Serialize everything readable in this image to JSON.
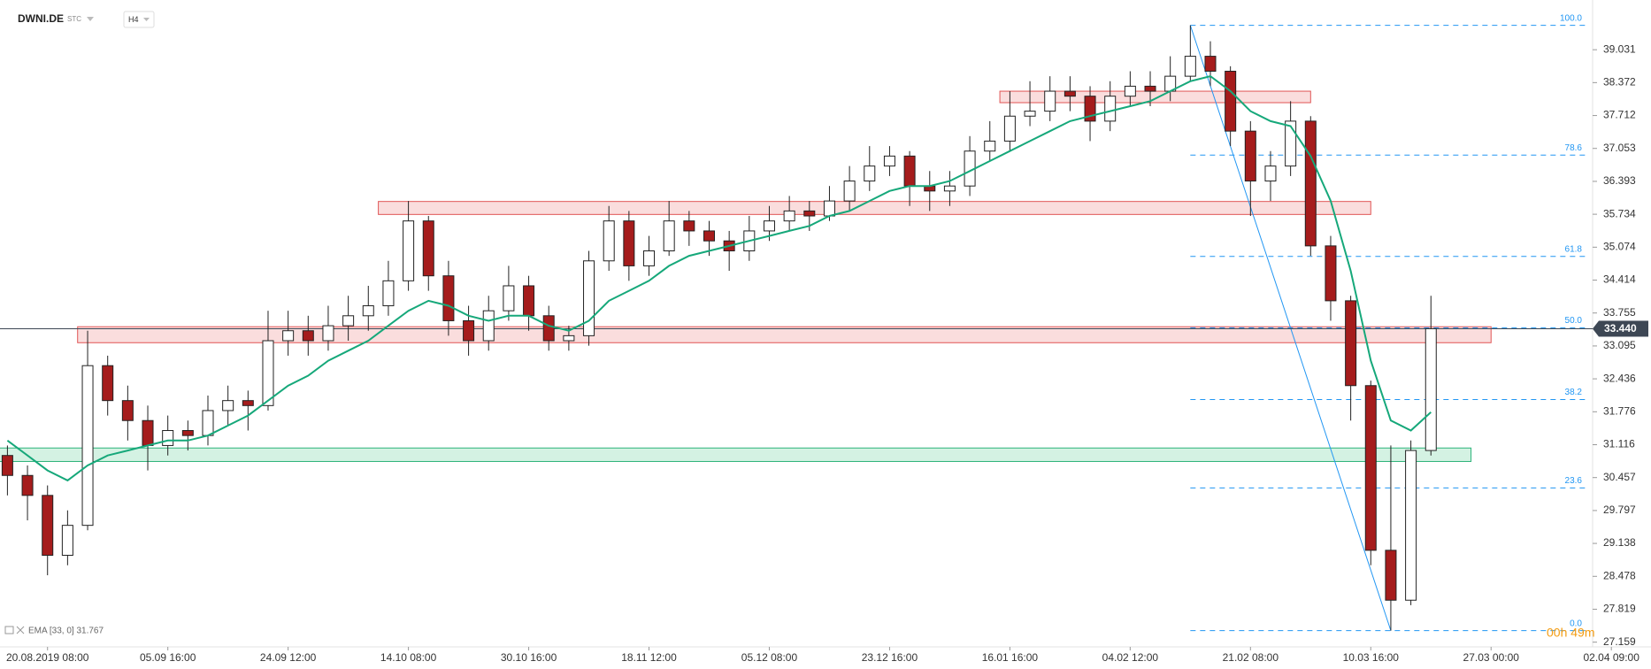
{
  "chart_data": {
    "type": "candlestick",
    "title": "DWNI.DE",
    "subtitle": "STC",
    "timeframe": "H4",
    "indicator": "EMA [33, 0] 31.767",
    "timer": "00h 49m",
    "categories": [
      null,
      null,
      "20.08.2019 08:00",
      null,
      null,
      null,
      null,
      null,
      "05.09 16:00",
      null,
      null,
      null,
      null,
      null,
      "24.09 12:00",
      null,
      null,
      null,
      null,
      null,
      "14.10 08:00",
      null,
      null,
      null,
      null,
      null,
      "30.10 16:00",
      null,
      null,
      null,
      null,
      null,
      "18.11 12:00",
      null,
      null,
      null,
      null,
      null,
      "05.12 08:00",
      null,
      null,
      null,
      null,
      null,
      "23.12 16:00",
      null,
      null,
      null,
      null,
      null,
      "16.01 16:00",
      null,
      null,
      null,
      null,
      null,
      "04.02 12:00",
      null,
      null,
      null,
      null,
      null,
      "21.02 08:00",
      null,
      null,
      null,
      null,
      null,
      "10.03 16:00",
      null,
      null,
      null,
      null,
      null,
      "27.03 00:00",
      null,
      null,
      null,
      null,
      null,
      "02.04 09:00"
    ],
    "opens": [
      30.9,
      30.5,
      30.1,
      28.9,
      29.5,
      32.7,
      32.0,
      31.6,
      31.1,
      31.4,
      31.3,
      31.8,
      32.0,
      31.9,
      33.2,
      33.4,
      33.2,
      33.5,
      33.7,
      33.9,
      34.4,
      35.6,
      34.5,
      33.6,
      33.2,
      33.8,
      34.3,
      33.7,
      33.2,
      33.3,
      34.8,
      35.6,
      34.7,
      35.0,
      35.6,
      35.4,
      35.2,
      35.0,
      35.4,
      35.6,
      35.8,
      35.7,
      36.0,
      36.4,
      36.7,
      36.9,
      36.3,
      36.2,
      36.3,
      37.0,
      37.2,
      37.7,
      37.8,
      38.2,
      38.1,
      37.6,
      38.1,
      38.3,
      38.2,
      38.5,
      38.9,
      38.6,
      37.4,
      36.4,
      36.7,
      37.6,
      35.1,
      34.0,
      32.3,
      29.0,
      28.0,
      31.0,
      null,
      null,
      null,
      null,
      null,
      null,
      null,
      null,
      null
    ],
    "highs": [
      31.1,
      30.7,
      30.3,
      29.8,
      33.4,
      32.9,
      32.3,
      31.9,
      31.7,
      31.6,
      32.1,
      32.3,
      32.2,
      33.8,
      33.8,
      33.7,
      33.9,
      34.1,
      34.3,
      34.8,
      36.0,
      35.7,
      34.8,
      33.9,
      34.1,
      34.7,
      34.5,
      33.9,
      33.5,
      35.0,
      35.9,
      35.8,
      35.3,
      36.0,
      35.8,
      35.6,
      35.4,
      35.7,
      35.9,
      36.1,
      36.0,
      36.3,
      36.7,
      37.1,
      37.1,
      37.0,
      36.6,
      36.6,
      37.3,
      37.6,
      38.2,
      38.4,
      38.5,
      38.5,
      38.3,
      38.4,
      38.6,
      38.6,
      38.9,
      39.52,
      39.2,
      38.7,
      37.6,
      37.0,
      38.0,
      37.7,
      35.3,
      34.1,
      32.4,
      31.1,
      31.2,
      34.1,
      null,
      null,
      null,
      null,
      null,
      null,
      null,
      null,
      null
    ],
    "lows": [
      30.1,
      29.6,
      28.5,
      28.7,
      29.4,
      31.7,
      31.2,
      30.6,
      30.9,
      31.0,
      31.1,
      31.5,
      31.4,
      31.8,
      32.9,
      32.9,
      33.0,
      33.2,
      33.4,
      33.7,
      34.2,
      34.2,
      33.3,
      32.9,
      33.0,
      33.6,
      33.4,
      33.0,
      33.0,
      33.1,
      34.6,
      34.4,
      34.5,
      34.9,
      35.1,
      34.9,
      34.6,
      34.8,
      35.2,
      35.4,
      35.4,
      35.6,
      35.8,
      36.2,
      36.5,
      35.9,
      35.8,
      35.9,
      36.1,
      36.8,
      37.0,
      37.5,
      37.6,
      37.8,
      37.2,
      37.4,
      37.9,
      37.9,
      38.0,
      38.4,
      38.3,
      37.1,
      35.7,
      36.0,
      36.5,
      34.9,
      33.6,
      31.6,
      28.7,
      27.39,
      27.9,
      30.9,
      null,
      null,
      null,
      null,
      null,
      null,
      null,
      null,
      null
    ],
    "closes": [
      30.5,
      30.1,
      28.9,
      29.5,
      32.7,
      32.0,
      31.6,
      31.1,
      31.4,
      31.3,
      31.8,
      32.0,
      31.9,
      33.2,
      33.4,
      33.2,
      33.5,
      33.7,
      33.9,
      34.4,
      35.6,
      34.5,
      33.6,
      33.2,
      33.8,
      34.3,
      33.7,
      33.2,
      33.3,
      34.8,
      35.6,
      34.7,
      35.0,
      35.6,
      35.4,
      35.2,
      35.0,
      35.4,
      35.6,
      35.8,
      35.7,
      36.0,
      36.4,
      36.7,
      36.9,
      36.3,
      36.2,
      36.3,
      37.0,
      37.2,
      37.7,
      37.8,
      38.2,
      38.1,
      37.6,
      38.1,
      38.3,
      38.2,
      38.5,
      38.9,
      38.6,
      37.4,
      36.4,
      36.7,
      37.6,
      35.1,
      34.0,
      32.3,
      29.0,
      28.0,
      31.0,
      33.44,
      null,
      null,
      null,
      null,
      null,
      null,
      null,
      null,
      null
    ],
    "up_color": "#ffffff",
    "down_color": "#a51c1c",
    "wick_color": "#222222",
    "ema": {
      "color": "#16a87a",
      "values": [
        31.2,
        30.9,
        30.6,
        30.4,
        30.7,
        30.9,
        31.0,
        31.1,
        31.2,
        31.2,
        31.3,
        31.5,
        31.7,
        32.0,
        32.3,
        32.5,
        32.8,
        33.0,
        33.2,
        33.5,
        33.8,
        34.0,
        33.9,
        33.7,
        33.6,
        33.7,
        33.7,
        33.5,
        33.4,
        33.6,
        34.0,
        34.2,
        34.4,
        34.7,
        34.9,
        35.0,
        35.1,
        35.2,
        35.3,
        35.4,
        35.5,
        35.7,
        35.8,
        36.0,
        36.2,
        36.3,
        36.3,
        36.4,
        36.6,
        36.8,
        37.0,
        37.2,
        37.4,
        37.6,
        37.7,
        37.8,
        37.9,
        38.0,
        38.2,
        38.4,
        38.5,
        38.2,
        37.8,
        37.6,
        37.5,
        36.9,
        36.0,
        34.6,
        32.8,
        31.6,
        31.4,
        31.767,
        null,
        null,
        null,
        null,
        null,
        null,
        null,
        null,
        null
      ]
    },
    "ylim": [
      27.1,
      39.85
    ],
    "yticks": [
      39.031,
      38.372,
      37.712,
      37.053,
      36.393,
      35.734,
      35.074,
      34.414,
      33.755,
      33.095,
      32.436,
      31.776,
      31.116,
      30.457,
      29.797,
      29.138,
      28.478,
      27.819,
      27.159
    ],
    "grid": false,
    "zones": [
      {
        "from": 50,
        "to": 65,
        "low": 37.97,
        "high": 38.2,
        "fill": "#f9d4d4",
        "stroke": "#e05555"
      },
      {
        "from": 19,
        "to": 68,
        "low": 35.73,
        "high": 35.99,
        "fill": "#f9d4d4",
        "stroke": "#e05555"
      },
      {
        "from": 4,
        "to": 74,
        "low": 33.16,
        "high": 33.48,
        "fill": "#f9d4d4",
        "stroke": "#e05555"
      },
      {
        "from": 0,
        "to": 73,
        "low": 30.78,
        "high": 31.05,
        "fill": "#c9efdc",
        "stroke": "#2db37a"
      }
    ],
    "fib_color": "#2196f3",
    "fib_span": [
      59,
      69
    ],
    "fib": [
      {
        "label": "100.0",
        "value": 39.52
      },
      {
        "label": "78.6",
        "value": 36.92
      },
      {
        "label": "61.8",
        "value": 34.89
      },
      {
        "label": "50.0",
        "value": 33.46
      },
      {
        "label": "38.2",
        "value": 32.02
      },
      {
        "label": "23.6",
        "value": 30.25
      },
      {
        "label": "0.0",
        "value": 27.39
      }
    ],
    "last_price": {
      "value": 33.44,
      "label": "33.440"
    }
  }
}
